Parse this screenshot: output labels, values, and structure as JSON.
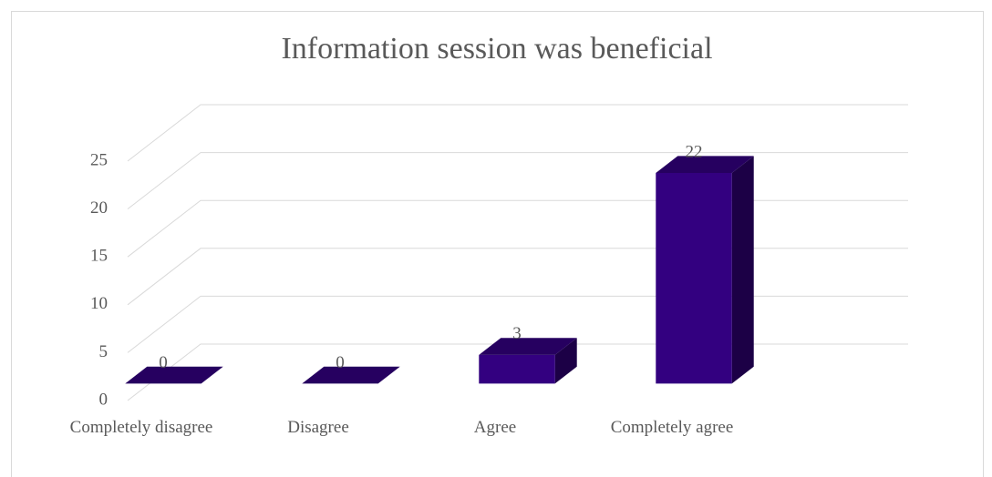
{
  "chart_data": {
    "type": "bar3d",
    "title": "Information session was beneficial",
    "categories": [
      "Completely disagree",
      "Disagree",
      "Agree",
      "Completely agree"
    ],
    "values": [
      0,
      0,
      3,
      22
    ],
    "color": "#330080",
    "ylim": [
      0,
      25
    ],
    "yticks": [
      0,
      5,
      10,
      15,
      20,
      25
    ],
    "grid": true
  }
}
